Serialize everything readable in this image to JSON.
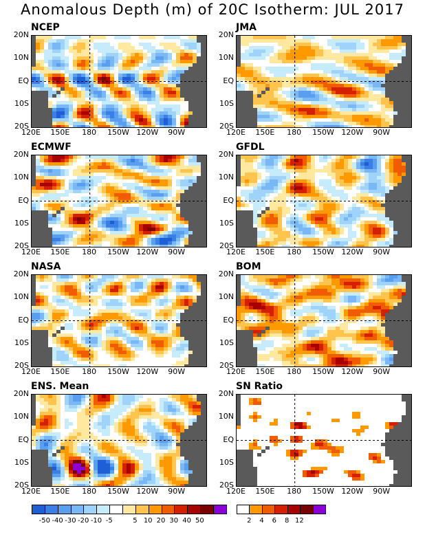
{
  "title": "Anomalous Depth (m) of 20C Isotherm: JUL 2017",
  "lat_labels": [
    "20N",
    "10N",
    "EQ",
    "10S",
    "20S"
  ],
  "lon_labels": [
    "120E",
    "150E",
    "180",
    "150W",
    "120W",
    "90W"
  ],
  "panels": [
    {
      "label": "NCEP",
      "seed": 3,
      "bias": 0.0,
      "mode": "anom"
    },
    {
      "label": "JMA",
      "seed": 7,
      "bias": 0.15,
      "mode": "anom"
    },
    {
      "label": "ECMWF",
      "seed": 11,
      "bias": 0.1,
      "mode": "anom"
    },
    {
      "label": "GFDL",
      "seed": 17,
      "bias": 0.12,
      "mode": "anom"
    },
    {
      "label": "NASA",
      "seed": 23,
      "bias": 0.15,
      "mode": "anom"
    },
    {
      "label": "BOM",
      "seed": 29,
      "bias": 0.3,
      "mode": "anom"
    },
    {
      "label": "ENS. Mean",
      "seed": 31,
      "bias": 0.1,
      "mode": "anom"
    },
    {
      "label": "SN Ratio",
      "seed": 37,
      "bias": 0.0,
      "mode": "sn"
    }
  ],
  "colorbar_anom": {
    "colors": [
      "#1f5fd6",
      "#3b7ee6",
      "#5a9ef0",
      "#7ab8f5",
      "#9fd3fa",
      "#c6ecfc",
      "#ffffff",
      "#ffe8a0",
      "#ffc44d",
      "#ff9900",
      "#f25c00",
      "#d42000",
      "#a80000",
      "#7a0000",
      "#8b00d4"
    ],
    "labels": [
      "-50",
      "-40",
      "-30",
      "-20",
      "-10",
      "-5",
      "5",
      "10",
      "20",
      "30",
      "40",
      "50"
    ]
  },
  "colorbar_sn": {
    "colors": [
      "#ffffff",
      "#ff9900",
      "#f25c00",
      "#d42000",
      "#a80000",
      "#7a0000",
      "#8b00d4"
    ],
    "labels": [
      "2",
      "4",
      "6",
      "8",
      "12"
    ]
  },
  "land_color": "#5a5a5a"
}
